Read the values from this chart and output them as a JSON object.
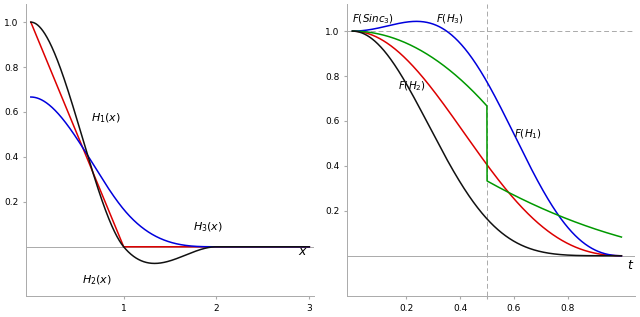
{
  "bg_color": "#ffffff",
  "color_H1": "#dd0000",
  "color_H2": "#0000dd",
  "color_H3": "#111111",
  "color_FH1": "#dd0000",
  "color_FH2": "#111111",
  "color_FH3": "#0000dd",
  "color_FSinc": "#009900",
  "color_axis": "#aaaaaa",
  "color_dashed": "#aaaaaa",
  "left_xlim": [
    -0.05,
    3.05
  ],
  "left_ylim": [
    -0.22,
    1.08
  ],
  "left_yticks": [
    0.2,
    0.4,
    0.6,
    0.8,
    1.0
  ],
  "left_ytick_labels": [
    "0.2",
    "0.4",
    "0.6",
    "0.8",
    "1.0"
  ],
  "right_xlim": [
    -0.02,
    1.05
  ],
  "right_ylim": [
    -0.18,
    1.12
  ],
  "right_yticks": [
    0.2,
    0.4,
    0.6,
    0.8,
    1.0
  ],
  "right_ytick_labels": [
    "0.2",
    "0.4",
    "0.6",
    "0.8",
    "1.0"
  ],
  "lw": 1.1
}
